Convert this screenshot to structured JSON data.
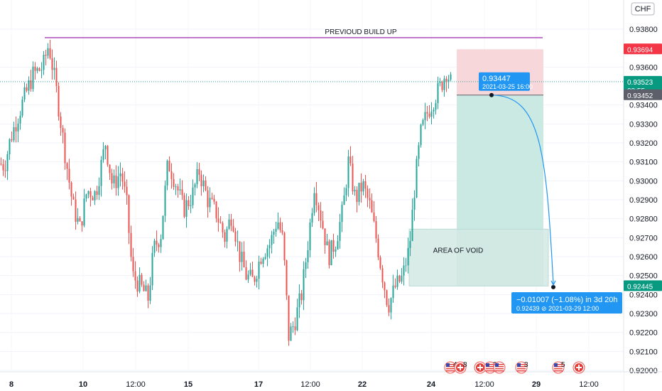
{
  "currency": "CHF",
  "chart_data": {
    "type": "candlestick",
    "yticks": [
      "0.93800",
      "0.93600",
      "0.93400",
      "0.93300",
      "0.93200",
      "0.93100",
      "0.93000",
      "0.92900",
      "0.92800",
      "0.92700",
      "0.92600",
      "0.92500",
      "0.92400",
      "0.92300",
      "0.92200",
      "0.92100",
      "0.92000"
    ],
    "ytick_values": [
      0.938,
      0.936,
      0.934,
      0.933,
      0.932,
      0.931,
      0.93,
      0.929,
      0.928,
      0.927,
      0.926,
      0.925,
      0.924,
      0.923,
      0.922,
      0.921,
      0.92
    ],
    "xticks": [
      "8",
      "10",
      "12:00",
      "15",
      "17",
      "12:00",
      "22",
      "24",
      "12:00",
      "29",
      "12:00"
    ],
    "ylim": [
      0.9196,
      0.9399
    ],
    "price_labels": {
      "stop": {
        "value": "0.93694",
        "color": "#f23645"
      },
      "current": {
        "value": "0.93523",
        "countdown": "08:55",
        "color": "#089981"
      },
      "entry": {
        "value": "0.93452",
        "color": "#5d606b"
      },
      "target": {
        "value": "0.92445",
        "color": "#089981"
      }
    },
    "annotations": {
      "build_up": "PREVIOUD BUILD UP",
      "void": "AREA OF VOID",
      "entry_tip_price": "0.93447",
      "entry_tip_date": "2021-03-25 16:00",
      "proj_main": "−0.01007 (−1.08%) in 3d 20h",
      "proj_sub": "0.92439 ⊘ 2021-03-29  12:00"
    },
    "level_values": {
      "build_up": 0.93755,
      "stop": 0.93694,
      "entry": 0.93452,
      "current": 0.93523,
      "target": 0.92445,
      "void_top": 0.92745
    },
    "events": [
      {
        "flag": "us",
        "count": "4"
      },
      {
        "flag": "ch",
        "count": "8"
      },
      {
        "flag": "ch",
        "count": ""
      },
      {
        "flag": "us",
        "count": "34"
      },
      {
        "flag": "us",
        "count": ""
      },
      {
        "flag": "us",
        "count": "3"
      },
      {
        "flag": "us",
        "count": "5"
      },
      {
        "flag": "ch",
        "count": ""
      }
    ],
    "colors": {
      "up": "#26a69a",
      "down": "#ef5350",
      "build_up_line": "#9c27b0",
      "stop_zone": "#f8d7da",
      "target_zone": "#cbe9e3",
      "void_zone": "#d4e9e3",
      "projection": "#2196f3"
    }
  }
}
